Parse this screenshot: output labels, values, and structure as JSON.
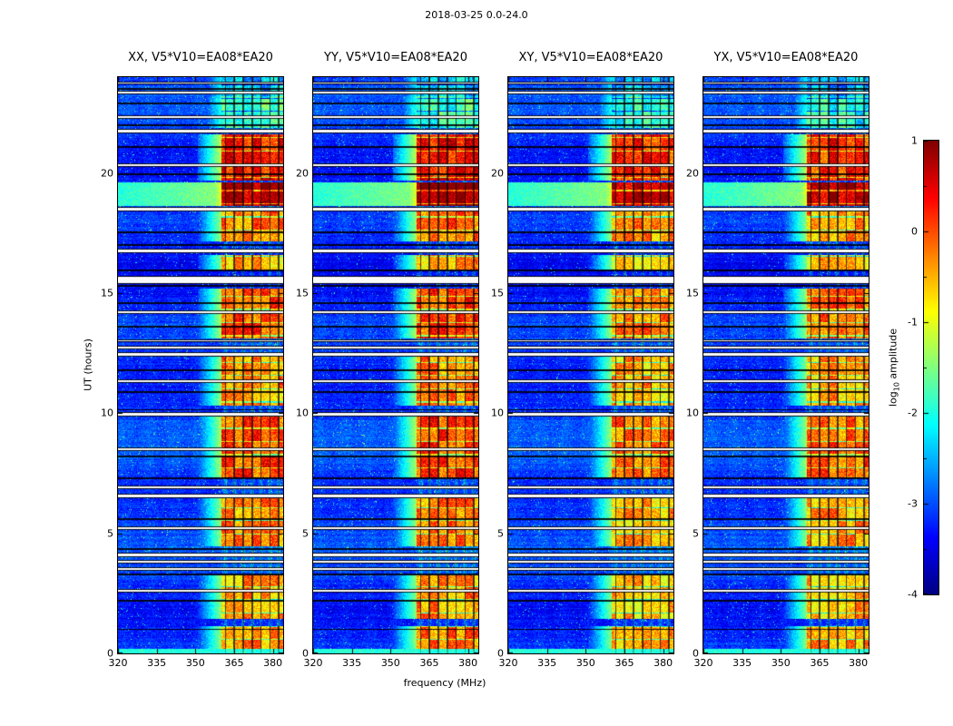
{
  "figure_title": "2018-03-25 0.0-24.0",
  "axes": {
    "xlabel": "frequency (MHz)",
    "ylabel": "UT (hours)"
  },
  "colorbar": {
    "label_prefix": "log",
    "label_subscript": "10",
    "label_suffix": " amplitude",
    "tick_labels": [
      "1",
      "0",
      "-1",
      "-2",
      "-3",
      "-4"
    ],
    "vmax": 1,
    "vmin": -4,
    "colormap": "jet",
    "color_top": "#800000",
    "color_bottom": "#000080"
  },
  "chart_data": {
    "type": "heatmap",
    "title": "2018-03-25 0.0-24.0",
    "panels": [
      {
        "label": "XX, V5*V10=EA08*EA20"
      },
      {
        "label": "YY, V5*V10=EA08*EA20"
      },
      {
        "label": "XY, V5*V10=EA08*EA20"
      },
      {
        "label": "YX, V5*V10=EA08*EA20"
      }
    ],
    "xlabel": "frequency (MHz)",
    "ylabel": "UT (hours)",
    "x_ticks": [
      320,
      335,
      350,
      365,
      380
    ],
    "y_ticks": [
      0,
      5,
      10,
      15,
      20
    ],
    "x_range_mhz": [
      320,
      384
    ],
    "y_range_hours": [
      0,
      24
    ],
    "colorbar_label": "log10 amplitude",
    "colorbar_ticks": [
      1,
      0,
      -1,
      -2,
      -3,
      -4
    ],
    "colormap": "jet",
    "background_log_amp": -3.4,
    "rfi_band_mhz": [
      360,
      384
    ],
    "rfi_subband_spacing_mhz": 3.43,
    "rfi_events": [
      {
        "t_start": 0.2,
        "t_end": 1.15,
        "log_amp": -0.35
      },
      {
        "t_start": 1.45,
        "t_end": 3.25,
        "log_amp": -0.45
      },
      {
        "t_start": 4.45,
        "t_end": 6.45,
        "log_amp": -0.3
      },
      {
        "t_start": 7.35,
        "t_end": 9.85,
        "log_amp": 0.0
      },
      {
        "t_start": 10.3,
        "t_end": 12.35,
        "log_amp": -0.35
      },
      {
        "t_start": 13.1,
        "t_end": 15.2,
        "log_amp": -0.05
      },
      {
        "t_start": 16.0,
        "t_end": 16.6,
        "log_amp": -0.6
      },
      {
        "t_start": 17.15,
        "t_end": 18.4,
        "log_amp": -0.25
      },
      {
        "t_start": 18.65,
        "t_end": 19.6,
        "log_amp": 0.85
      },
      {
        "t_start": 19.7,
        "t_end": 21.6,
        "log_amp": 0.3
      },
      {
        "t_start": 21.9,
        "t_end": 23.2,
        "log_amp": -1.9
      },
      {
        "t_start": 23.2,
        "t_end": 24.0,
        "log_amp": -2.4
      }
    ],
    "flagged_rows_ut": [
      {
        "t": 2.62,
        "w": 0.08
      },
      {
        "t": 3.52,
        "w": 0.1
      },
      {
        "t": 3.82,
        "w": 0.08
      },
      {
        "t": 4.1,
        "w": 0.08
      },
      {
        "t": 5.2,
        "w": 0.08
      },
      {
        "t": 6.55,
        "w": 0.1
      },
      {
        "t": 6.9,
        "w": 0.08
      },
      {
        "t": 8.5,
        "w": 0.08
      },
      {
        "t": 9.95,
        "w": 0.1
      },
      {
        "t": 11.35,
        "w": 0.08
      },
      {
        "t": 12.45,
        "w": 0.1
      },
      {
        "t": 12.75,
        "w": 0.08
      },
      {
        "t": 13.02,
        "w": 0.06
      },
      {
        "t": 14.2,
        "w": 0.08
      },
      {
        "t": 15.55,
        "w": 0.28
      },
      {
        "t": 16.75,
        "w": 0.1
      },
      {
        "t": 18.5,
        "w": 0.1
      },
      {
        "t": 20.35,
        "w": 0.08
      },
      {
        "t": 21.75,
        "w": 0.1
      },
      {
        "t": 22.35,
        "w": 0.08
      },
      {
        "t": 23.35,
        "w": 0.08
      },
      {
        "t": 23.75,
        "w": 0.06
      }
    ],
    "dark_rows_ut": [
      {
        "t": 1.0
      },
      {
        "t": 2.2
      },
      {
        "t": 3.3
      },
      {
        "t": 4.35
      },
      {
        "t": 5.6
      },
      {
        "t": 7.3
      },
      {
        "t": 8.2
      },
      {
        "t": 10.15
      },
      {
        "t": 10.9
      },
      {
        "t": 11.8
      },
      {
        "t": 13.6
      },
      {
        "t": 14.6
      },
      {
        "t": 15.3
      },
      {
        "t": 15.95
      },
      {
        "t": 17.0
      },
      {
        "t": 17.55
      },
      {
        "t": 19.95
      },
      {
        "t": 21.1
      },
      {
        "t": 22.0
      },
      {
        "t": 22.9
      },
      {
        "t": 23.5
      }
    ]
  }
}
